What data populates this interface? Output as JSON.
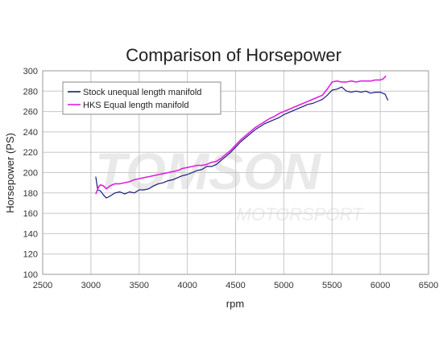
{
  "chart_data": {
    "type": "line",
    "title": "Comparison of Horsepower",
    "xlabel": "rpm",
    "ylabel": "Horsepower (PS)",
    "xlim": [
      2500,
      6500
    ],
    "ylim": [
      100,
      300
    ],
    "x_ticks": [
      2500,
      3000,
      3500,
      4000,
      4500,
      5000,
      5500,
      6000,
      6500
    ],
    "y_ticks": [
      100,
      120,
      140,
      160,
      180,
      200,
      220,
      240,
      260,
      280,
      300
    ],
    "grid": true,
    "legend_position": "top-left",
    "watermark": [
      "TOMSON",
      "MOTORSPORT"
    ],
    "series": [
      {
        "name": "Stock unequal length manifold",
        "color": "#1a1a7a",
        "points": [
          [
            3050,
            196
          ],
          [
            3070,
            183
          ],
          [
            3100,
            182
          ],
          [
            3130,
            178
          ],
          [
            3160,
            175
          ],
          [
            3200,
            177
          ],
          [
            3250,
            180
          ],
          [
            3300,
            181
          ],
          [
            3350,
            179
          ],
          [
            3400,
            181
          ],
          [
            3450,
            180
          ],
          [
            3500,
            183
          ],
          [
            3550,
            183
          ],
          [
            3600,
            184
          ],
          [
            3650,
            187
          ],
          [
            3700,
            189
          ],
          [
            3750,
            190
          ],
          [
            3800,
            192
          ],
          [
            3850,
            193
          ],
          [
            3900,
            195
          ],
          [
            3950,
            197
          ],
          [
            4000,
            198
          ],
          [
            4050,
            200
          ],
          [
            4100,
            202
          ],
          [
            4150,
            203
          ],
          [
            4200,
            206
          ],
          [
            4250,
            206
          ],
          [
            4300,
            208
          ],
          [
            4350,
            212
          ],
          [
            4400,
            216
          ],
          [
            4450,
            220
          ],
          [
            4500,
            225
          ],
          [
            4550,
            230
          ],
          [
            4600,
            234
          ],
          [
            4650,
            238
          ],
          [
            4700,
            242
          ],
          [
            4750,
            245
          ],
          [
            4800,
            248
          ],
          [
            4850,
            250
          ],
          [
            4900,
            252
          ],
          [
            4950,
            254
          ],
          [
            5000,
            257
          ],
          [
            5050,
            259
          ],
          [
            5100,
            261
          ],
          [
            5150,
            263
          ],
          [
            5200,
            265
          ],
          [
            5250,
            267
          ],
          [
            5300,
            268
          ],
          [
            5350,
            270
          ],
          [
            5400,
            272
          ],
          [
            5450,
            276
          ],
          [
            5500,
            281
          ],
          [
            5550,
            282
          ],
          [
            5600,
            284
          ],
          [
            5650,
            280
          ],
          [
            5700,
            279
          ],
          [
            5750,
            280
          ],
          [
            5800,
            279
          ],
          [
            5850,
            280
          ],
          [
            5900,
            278
          ],
          [
            5950,
            279
          ],
          [
            6000,
            279
          ],
          [
            6050,
            277
          ],
          [
            6080,
            271
          ]
        ]
      },
      {
        "name": "HKS Equal length manifold",
        "color": "#e020e0",
        "points": [
          [
            3050,
            179
          ],
          [
            3080,
            186
          ],
          [
            3100,
            188
          ],
          [
            3130,
            187
          ],
          [
            3160,
            184
          ],
          [
            3200,
            187
          ],
          [
            3250,
            189
          ],
          [
            3300,
            189
          ],
          [
            3350,
            190
          ],
          [
            3400,
            191
          ],
          [
            3450,
            193
          ],
          [
            3500,
            194
          ],
          [
            3550,
            195
          ],
          [
            3600,
            196
          ],
          [
            3650,
            197
          ],
          [
            3700,
            198
          ],
          [
            3750,
            199
          ],
          [
            3800,
            200
          ],
          [
            3850,
            201
          ],
          [
            3900,
            202
          ],
          [
            3950,
            204
          ],
          [
            4000,
            205
          ],
          [
            4050,
            206
          ],
          [
            4100,
            207
          ],
          [
            4150,
            207
          ],
          [
            4200,
            208
          ],
          [
            4250,
            210
          ],
          [
            4300,
            211
          ],
          [
            4350,
            214
          ],
          [
            4400,
            218
          ],
          [
            4450,
            222
          ],
          [
            4500,
            227
          ],
          [
            4550,
            232
          ],
          [
            4600,
            236
          ],
          [
            4650,
            240
          ],
          [
            4700,
            244
          ],
          [
            4750,
            247
          ],
          [
            4800,
            250
          ],
          [
            4850,
            253
          ],
          [
            4900,
            255
          ],
          [
            4950,
            258
          ],
          [
            5000,
            260
          ],
          [
            5050,
            262
          ],
          [
            5100,
            264
          ],
          [
            5150,
            266
          ],
          [
            5200,
            268
          ],
          [
            5250,
            270
          ],
          [
            5300,
            272
          ],
          [
            5350,
            274
          ],
          [
            5400,
            276
          ],
          [
            5450,
            282
          ],
          [
            5500,
            289
          ],
          [
            5550,
            290
          ],
          [
            5600,
            289
          ],
          [
            5650,
            289
          ],
          [
            5700,
            290
          ],
          [
            5750,
            289
          ],
          [
            5800,
            290
          ],
          [
            5850,
            290
          ],
          [
            5900,
            290
          ],
          [
            5950,
            291
          ],
          [
            6000,
            291
          ],
          [
            6030,
            292
          ],
          [
            6060,
            295
          ]
        ]
      }
    ]
  }
}
